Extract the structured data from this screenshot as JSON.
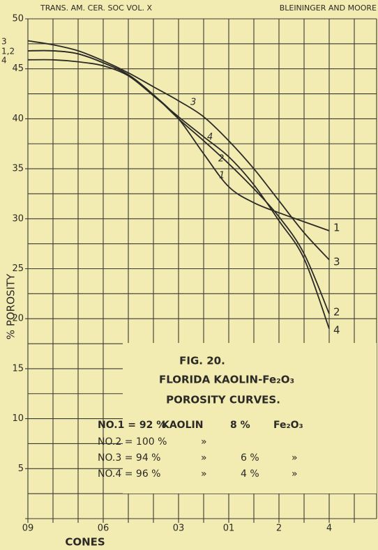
{
  "chart_data": {
    "type": "line",
    "header_left": "TRANS. AM. CER. SOC   VOL. X",
    "header_right": "BLEININGER AND MOORE",
    "title": "FIG. 20.",
    "subtitle": "FLORIDA KAOLIN-Fe₂O₃",
    "subtitle2": "POROSITY CURVES.",
    "ylabel": "% POROSITY",
    "xlabel": "CONES",
    "categories": [
      "09",
      null,
      null,
      "06",
      null,
      null,
      "03",
      null,
      "01",
      null,
      "2",
      null,
      "4",
      null
    ],
    "ylim": [
      0,
      50
    ],
    "yticks": [
      5,
      10,
      15,
      20,
      25,
      30,
      35,
      40,
      45,
      50
    ],
    "grid": true,
    "color": "#2b2a26",
    "start_labels": [
      "3",
      "1,2",
      "4"
    ],
    "series": [
      {
        "name": "1",
        "values": [
          46.8,
          46.8,
          46.5,
          45.6,
          44.4,
          42.4,
          40.0,
          36.5,
          33.2,
          31.6,
          30.6,
          29.7,
          28.8,
          null
        ]
      },
      {
        "name": "2",
        "values": [
          46.8,
          46.8,
          46.5,
          45.6,
          44.4,
          42.4,
          40.0,
          37.8,
          35.5,
          33.0,
          30.2,
          26.5,
          20.5,
          null
        ]
      },
      {
        "name": "3",
        "values": [
          47.8,
          47.4,
          46.8,
          45.8,
          44.6,
          43.2,
          41.8,
          40.2,
          37.8,
          35.0,
          31.8,
          28.6,
          25.9,
          null
        ]
      },
      {
        "name": "4",
        "values": [
          45.9,
          45.9,
          45.7,
          45.3,
          44.3,
          42.3,
          40.2,
          38.2,
          36.2,
          33.4,
          29.8,
          26.0,
          19.0,
          null
        ]
      }
    ],
    "legend_rows": [
      [
        "NO.1 = 92 %",
        "KAOLIN",
        "8 %",
        "Fe₂O₃"
      ],
      [
        "NO.2 = 100 %",
        "»"
      ],
      [
        "NO.3 = 94 %",
        "»",
        "6 %",
        "»"
      ],
      [
        "NO.4 = 96 %",
        "»",
        "4 %",
        "»"
      ]
    ]
  }
}
